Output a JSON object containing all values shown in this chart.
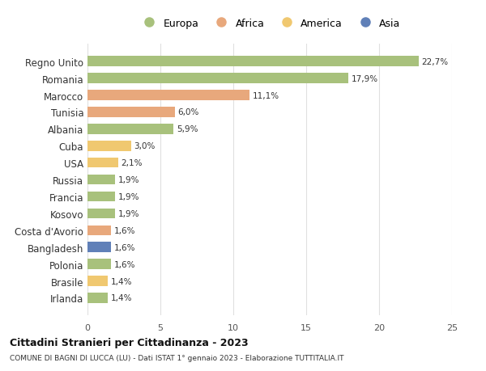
{
  "categories": [
    "Irlanda",
    "Brasile",
    "Polonia",
    "Bangladesh",
    "Costa d'Avorio",
    "Kosovo",
    "Francia",
    "Russia",
    "USA",
    "Cuba",
    "Albania",
    "Tunisia",
    "Marocco",
    "Romania",
    "Regno Unito"
  ],
  "values": [
    1.4,
    1.4,
    1.6,
    1.6,
    1.6,
    1.9,
    1.9,
    1.9,
    2.1,
    3.0,
    5.9,
    6.0,
    11.1,
    17.9,
    22.7
  ],
  "labels": [
    "1,4%",
    "1,4%",
    "1,6%",
    "1,6%",
    "1,6%",
    "1,9%",
    "1,9%",
    "1,9%",
    "2,1%",
    "3,0%",
    "5,9%",
    "6,0%",
    "11,1%",
    "17,9%",
    "22,7%"
  ],
  "continent": [
    "Europa",
    "America",
    "Europa",
    "Asia",
    "Africa",
    "Europa",
    "Europa",
    "Europa",
    "America",
    "America",
    "Europa",
    "Africa",
    "Africa",
    "Europa",
    "Europa"
  ],
  "colors": {
    "Europa": "#a8c17c",
    "Africa": "#e8a87c",
    "America": "#f0c870",
    "Asia": "#6080b8"
  },
  "legend_order": [
    "Europa",
    "Africa",
    "America",
    "Asia"
  ],
  "title": "Cittadini Stranieri per Cittadinanza - 2023",
  "subtitle": "COMUNE DI BAGNI DI LUCCA (LU) - Dati ISTAT 1° gennaio 2023 - Elaborazione TUTTITALIA.IT",
  "xlim": [
    0,
    25
  ],
  "xticks": [
    0,
    5,
    10,
    15,
    20,
    25
  ],
  "grid_color": "#e0e0e0",
  "background_color": "#ffffff",
  "bar_height": 0.6
}
